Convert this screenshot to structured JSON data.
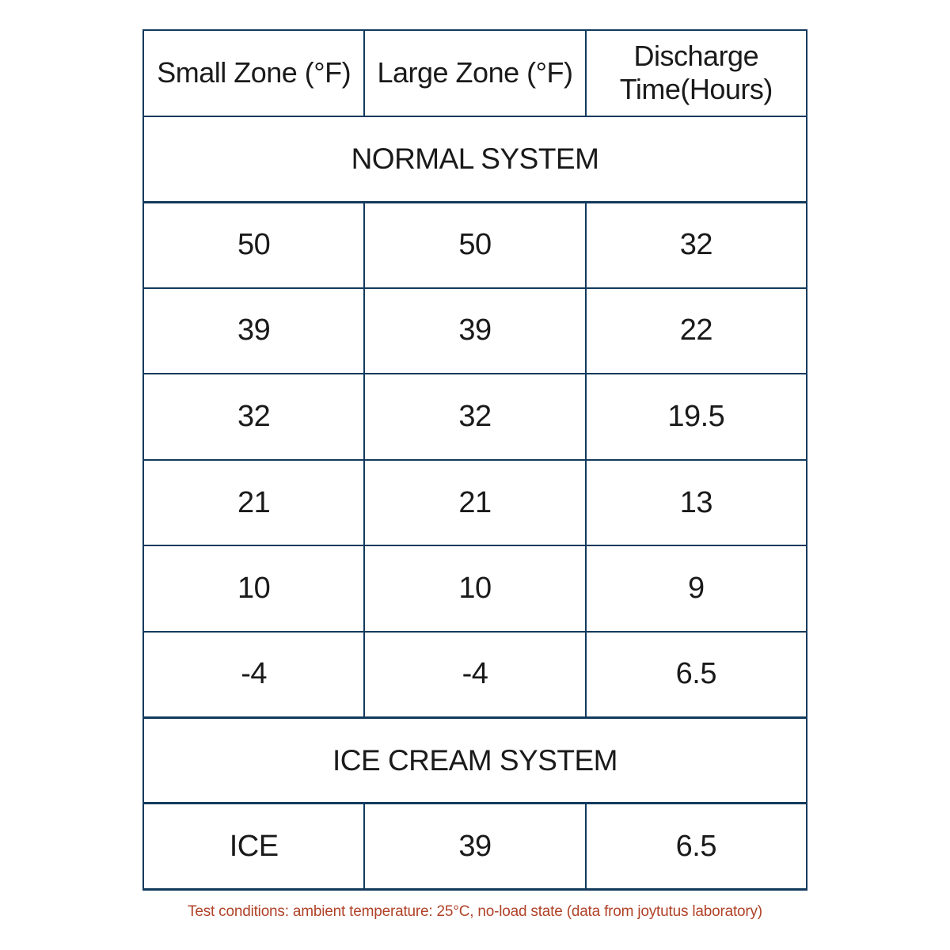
{
  "chart_data": {
    "type": "table",
    "columns": [
      "Small Zone (°F)",
      "Large Zone (°F)",
      "Discharge Time(Hours)"
    ],
    "sections": [
      {
        "title": "NORMAL SYSTEM",
        "rows": [
          [
            50,
            50,
            32
          ],
          [
            39,
            39,
            22
          ],
          [
            32,
            32,
            19.5
          ],
          [
            21,
            21,
            13
          ],
          [
            10,
            10,
            9
          ],
          [
            -4,
            -4,
            6.5
          ]
        ]
      },
      {
        "title": "ICE CREAM SYSTEM",
        "rows": [
          [
            "ICE",
            39,
            6.5
          ]
        ]
      }
    ],
    "footnote": "Test conditions: ambient temperature: 25°C, no-load state (data from joytutus laboratory)"
  },
  "colors": {
    "border": "#123a5c",
    "text": "#1a1a1a",
    "footnote_text": "#b04228"
  }
}
